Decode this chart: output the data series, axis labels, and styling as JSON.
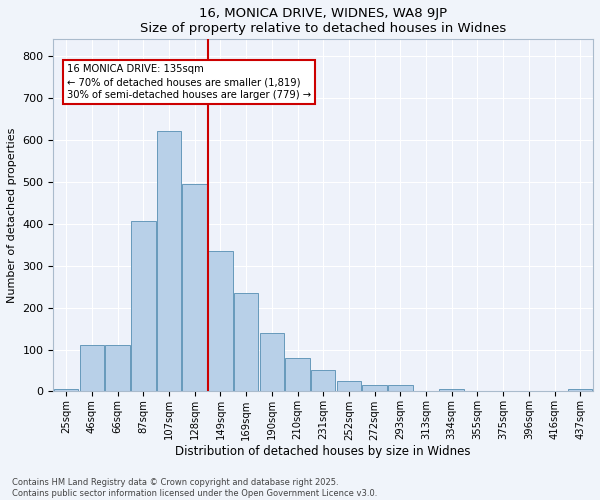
{
  "title": "16, MONICA DRIVE, WIDNES, WA8 9JP",
  "subtitle": "Size of property relative to detached houses in Widnes",
  "xlabel": "Distribution of detached houses by size in Widnes",
  "ylabel": "Number of detached properties",
  "bar_color": "#b8d0e8",
  "bar_edge_color": "#6699bb",
  "background_color": "#eef2fa",
  "grid_color": "#ffffff",
  "categories": [
    "25sqm",
    "46sqm",
    "66sqm",
    "87sqm",
    "107sqm",
    "128sqm",
    "149sqm",
    "169sqm",
    "190sqm",
    "210sqm",
    "231sqm",
    "252sqm",
    "272sqm",
    "293sqm",
    "313sqm",
    "334sqm",
    "355sqm",
    "375sqm",
    "396sqm",
    "416sqm",
    "437sqm"
  ],
  "bar_values": [
    5,
    110,
    110,
    405,
    620,
    495,
    335,
    235,
    140,
    80,
    50,
    25,
    15,
    15,
    0,
    5,
    0,
    0,
    0,
    0,
    5
  ],
  "annotation_text": "16 MONICA DRIVE: 135sqm\n← 70% of detached houses are smaller (1,819)\n30% of semi-detached houses are larger (779) →",
  "vline_index": 5.5,
  "vline_color": "#cc0000",
  "annotation_box_color": "#cc0000",
  "ylim": [
    0,
    840
  ],
  "yticks": [
    0,
    100,
    200,
    300,
    400,
    500,
    600,
    700,
    800
  ],
  "footer": "Contains HM Land Registry data © Crown copyright and database right 2025.\nContains public sector information licensed under the Open Government Licence v3.0."
}
